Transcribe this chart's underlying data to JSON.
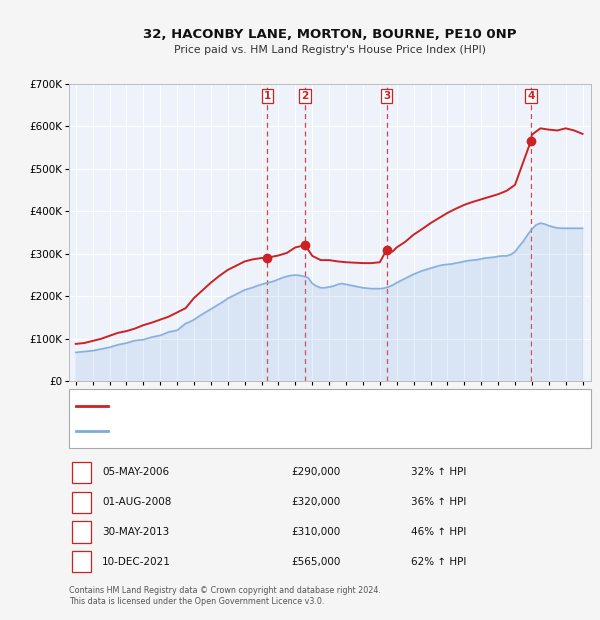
{
  "title": "32, HACONBY LANE, MORTON, BOURNE, PE10 0NP",
  "subtitle": "Price paid vs. HM Land Registry's House Price Index (HPI)",
  "bg_color": "#eef2fb",
  "ylim": [
    0,
    700000
  ],
  "yticks": [
    0,
    100000,
    200000,
    300000,
    400000,
    500000,
    600000,
    700000
  ],
  "ytick_labels": [
    "£0",
    "£100K",
    "£200K",
    "£300K",
    "£400K",
    "£500K",
    "£600K",
    "£700K"
  ],
  "xlim_start": 1994.6,
  "xlim_end": 2025.5,
  "sale_years": [
    2006.34,
    2008.58,
    2013.41,
    2021.94
  ],
  "sale_prices": [
    290000,
    320000,
    310000,
    565000
  ],
  "sale_labels": [
    "1",
    "2",
    "3",
    "4"
  ],
  "hpi_line_color": "#7eaadc",
  "price_line_color": "#cc2222",
  "sale_dot_color": "#cc2222",
  "dashed_line_color": "#cc3333",
  "footer_text": "Contains HM Land Registry data © Crown copyright and database right 2024.\nThis data is licensed under the Open Government Licence v3.0.",
  "table_rows": [
    [
      "1",
      "05-MAY-2006",
      "£290,000",
      "32% ↑ HPI"
    ],
    [
      "2",
      "01-AUG-2008",
      "£320,000",
      "36% ↑ HPI"
    ],
    [
      "3",
      "30-MAY-2013",
      "£310,000",
      "46% ↑ HPI"
    ],
    [
      "4",
      "10-DEC-2021",
      "£565,000",
      "62% ↑ HPI"
    ]
  ],
  "hpi_x": [
    1995.0,
    1995.25,
    1995.5,
    1995.75,
    1996.0,
    1996.25,
    1996.5,
    1996.75,
    1997.0,
    1997.25,
    1997.5,
    1997.75,
    1998.0,
    1998.25,
    1998.5,
    1998.75,
    1999.0,
    1999.25,
    1999.5,
    1999.75,
    2000.0,
    2000.25,
    2000.5,
    2000.75,
    2001.0,
    2001.25,
    2001.5,
    2001.75,
    2002.0,
    2002.25,
    2002.5,
    2002.75,
    2003.0,
    2003.25,
    2003.5,
    2003.75,
    2004.0,
    2004.25,
    2004.5,
    2004.75,
    2005.0,
    2005.25,
    2005.5,
    2005.75,
    2006.0,
    2006.25,
    2006.5,
    2006.75,
    2007.0,
    2007.25,
    2007.5,
    2007.75,
    2008.0,
    2008.25,
    2008.5,
    2008.75,
    2009.0,
    2009.25,
    2009.5,
    2009.75,
    2010.0,
    2010.25,
    2010.5,
    2010.75,
    2011.0,
    2011.25,
    2011.5,
    2011.75,
    2012.0,
    2012.25,
    2012.5,
    2012.75,
    2013.0,
    2013.25,
    2013.5,
    2013.75,
    2014.0,
    2014.25,
    2014.5,
    2014.75,
    2015.0,
    2015.25,
    2015.5,
    2015.75,
    2016.0,
    2016.25,
    2016.5,
    2016.75,
    2017.0,
    2017.25,
    2017.5,
    2017.75,
    2018.0,
    2018.25,
    2018.5,
    2018.75,
    2019.0,
    2019.25,
    2019.5,
    2019.75,
    2020.0,
    2020.25,
    2020.5,
    2020.75,
    2021.0,
    2021.25,
    2021.5,
    2021.75,
    2022.0,
    2022.25,
    2022.5,
    2022.75,
    2023.0,
    2023.25,
    2023.5,
    2023.75,
    2024.0,
    2024.25,
    2024.5,
    2024.75,
    2025.0
  ],
  "hpi_y": [
    68000,
    69000,
    70000,
    71000,
    72000,
    74000,
    76000,
    78000,
    80000,
    83000,
    86000,
    88000,
    90000,
    93000,
    96000,
    97000,
    98000,
    101000,
    104000,
    106000,
    108000,
    112000,
    116000,
    118000,
    120000,
    128000,
    136000,
    140000,
    145000,
    152000,
    158000,
    164000,
    170000,
    176000,
    182000,
    188000,
    195000,
    200000,
    205000,
    210000,
    215000,
    218000,
    221000,
    225000,
    228000,
    231000,
    233000,
    236000,
    240000,
    244000,
    247000,
    249000,
    250000,
    249000,
    247000,
    244000,
    230000,
    224000,
    220000,
    220000,
    222000,
    224000,
    228000,
    230000,
    228000,
    226000,
    224000,
    222000,
    220000,
    219000,
    218000,
    218000,
    218000,
    219000,
    222000,
    226000,
    232000,
    237000,
    242000,
    247000,
    252000,
    256000,
    260000,
    263000,
    266000,
    269000,
    272000,
    274000,
    275000,
    276000,
    278000,
    280000,
    282000,
    284000,
    285000,
    286000,
    288000,
    290000,
    291000,
    292000,
    294000,
    295000,
    295000,
    298000,
    305000,
    318000,
    330000,
    345000,
    358000,
    368000,
    372000,
    370000,
    366000,
    363000,
    361000,
    360000,
    360000,
    360000,
    360000,
    360000,
    360000
  ],
  "price_x": [
    1995.0,
    1995.5,
    1996.0,
    1996.5,
    1997.0,
    1997.5,
    1998.0,
    1998.5,
    1999.0,
    1999.5,
    2000.0,
    2000.5,
    2001.0,
    2001.5,
    2002.0,
    2002.5,
    2003.0,
    2003.5,
    2004.0,
    2004.5,
    2005.0,
    2005.5,
    2006.0,
    2006.34,
    2006.5,
    2007.0,
    2007.5,
    2008.0,
    2008.58,
    2008.75,
    2009.0,
    2009.5,
    2010.0,
    2010.5,
    2011.0,
    2011.5,
    2012.0,
    2012.5,
    2013.0,
    2013.41,
    2013.75,
    2014.0,
    2014.5,
    2015.0,
    2015.5,
    2016.0,
    2016.5,
    2017.0,
    2017.5,
    2018.0,
    2018.5,
    2019.0,
    2019.5,
    2020.0,
    2020.5,
    2021.0,
    2021.94,
    2022.0,
    2022.5,
    2023.0,
    2023.5,
    2024.0,
    2024.5,
    2025.0
  ],
  "price_y": [
    88000,
    90000,
    95000,
    100000,
    107000,
    114000,
    118000,
    124000,
    132000,
    138000,
    145000,
    152000,
    162000,
    172000,
    196000,
    214000,
    232000,
    248000,
    262000,
    272000,
    282000,
    287000,
    290000,
    290000,
    292000,
    296000,
    302000,
    315000,
    320000,
    310000,
    295000,
    285000,
    285000,
    282000,
    280000,
    279000,
    278000,
    278000,
    280000,
    310000,
    305000,
    315000,
    328000,
    345000,
    358000,
    372000,
    384000,
    396000,
    406000,
    415000,
    422000,
    428000,
    434000,
    440000,
    448000,
    462000,
    565000,
    580000,
    595000,
    592000,
    590000,
    595000,
    590000,
    582000
  ]
}
